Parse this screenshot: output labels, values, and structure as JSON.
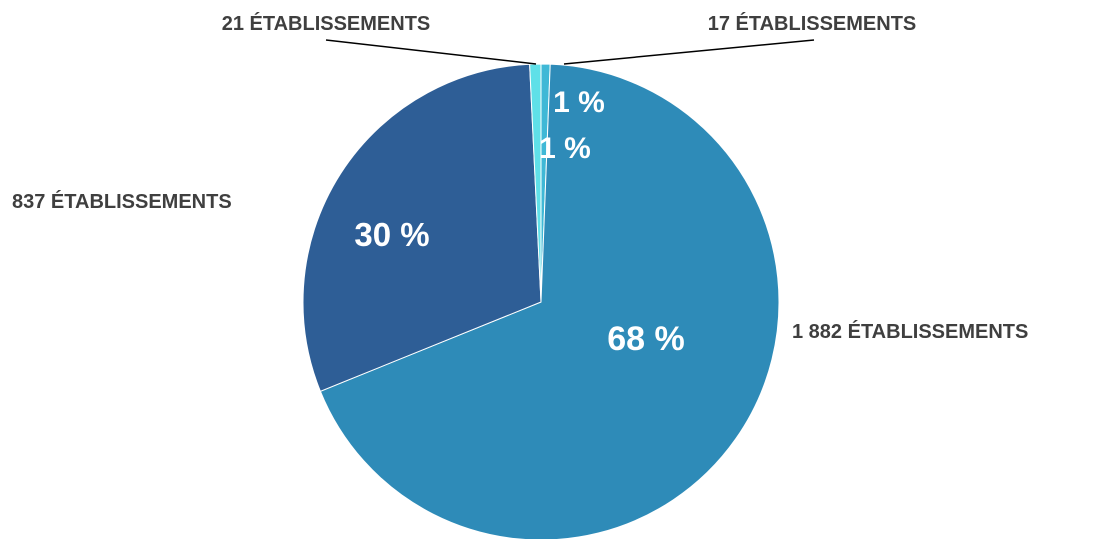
{
  "chart_data": {
    "type": "pie",
    "slices": [
      {
        "value": 17,
        "label": "17 ÉTABLISSEMENTS",
        "percent_label": "1 %",
        "color": "#3fb8d6"
      },
      {
        "value": 1882,
        "label": "1 882 ÉTABLISSEMENTS",
        "percent_label": "68 %",
        "color": "#2e8bb8"
      },
      {
        "value": 837,
        "label": "837 ÉTABLISSEMENTS",
        "percent_label": "30 %",
        "color": "#2e5e96"
      },
      {
        "value": 21,
        "label": "21 ÉTABLISSEMENTS",
        "percent_label": "1 %",
        "color": "#5fe0e8"
      }
    ],
    "start_angle_deg": 0,
    "direction": "clockwise",
    "legend": "none"
  }
}
